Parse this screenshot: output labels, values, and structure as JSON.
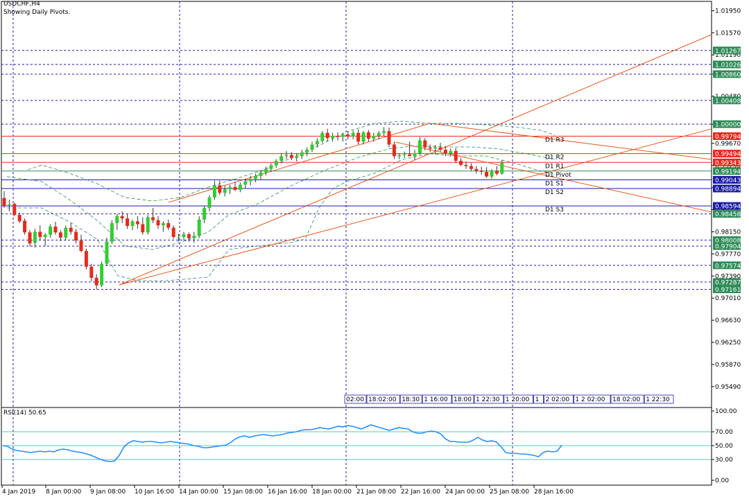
{
  "header": {
    "symbol_title": "USDCHF,H4",
    "indicator_note": "Showing Daily Pivots."
  },
  "rsi": {
    "label": "RSI(14) 50.65",
    "value": 50.65,
    "levels": [
      70,
      50,
      30
    ],
    "axis_ticks": [
      "100.00",
      "70.00",
      "50.00",
      "30.00",
      "0.00"
    ],
    "series_color": "#1e90ff",
    "values": [
      50,
      49,
      45,
      43,
      42,
      41,
      40,
      41,
      42,
      41,
      42,
      41,
      44,
      45,
      44,
      42,
      41,
      40,
      38,
      36,
      33,
      30,
      28,
      27,
      28,
      36,
      48,
      54,
      57,
      56,
      55,
      56,
      56,
      55,
      54,
      55,
      56,
      55,
      54,
      53,
      52,
      50,
      49,
      47,
      47,
      48,
      49,
      50,
      51,
      55,
      60,
      63,
      64,
      62,
      64,
      65,
      66,
      65,
      64,
      65,
      66,
      68,
      69,
      70,
      72,
      73,
      73,
      74,
      76,
      75,
      74,
      76,
      78,
      77,
      79,
      78,
      76,
      74,
      77,
      80,
      78,
      76,
      74,
      72,
      74,
      76,
      75,
      74,
      70,
      68,
      68,
      70,
      71,
      70,
      67,
      60,
      56,
      56,
      55,
      55,
      55,
      58,
      62,
      58,
      56,
      57,
      55,
      48,
      40,
      39,
      39,
      38,
      38,
      37,
      36,
      34,
      40,
      42,
      41,
      42,
      50.65
    ]
  },
  "price_axis": {
    "ticks": [
      "1.01950",
      "1.01570",
      "1.01190",
      "1.00860",
      "1.00480",
      "1.00000",
      "0.99670",
      "0.99290",
      "0.98910",
      "0.98530",
      "0.98150",
      "0.97770",
      "0.97390",
      "0.97010",
      "0.96630",
      "0.96250",
      "0.95870",
      "0.95490"
    ],
    "level_labels": [
      {
        "text": "1.01267",
        "price": 1.01267,
        "bg": "#2e8b57",
        "fg": "#ffffff"
      },
      {
        "text": "1.01026",
        "price": 1.01026,
        "bg": "#2e8b57",
        "fg": "#ffffff"
      },
      {
        "text": "1.00860",
        "price": 1.0086,
        "bg": "#2e8b57",
        "fg": "#ffffff"
      },
      {
        "text": "1.00408",
        "price": 1.00408,
        "bg": "#2e8b57",
        "fg": "#ffffff"
      },
      {
        "text": "1.00000",
        "price": 1.0,
        "bg": "#2e8b57",
        "fg": "#ffffff"
      },
      {
        "text": "0.99794",
        "price": 0.99794,
        "bg": "#e8291c",
        "fg": "#ffffff"
      },
      {
        "text": "0.99494",
        "price": 0.99494,
        "bg": "#e8291c",
        "fg": "#ffffff"
      },
      {
        "text": "0.99343",
        "price": 0.99343,
        "bg": "#e8291c",
        "fg": "#ffffff"
      },
      {
        "text": "0.99194",
        "price": 0.99194,
        "bg": "#2e8b57",
        "fg": "#ffffff"
      },
      {
        "text": "0.99043",
        "price": 0.99043,
        "bg": "#1a1aa6",
        "fg": "#ffffff"
      },
      {
        "text": "0.98894",
        "price": 0.98894,
        "bg": "#1a1aa6",
        "fg": "#ffffff"
      },
      {
        "text": "0.98594",
        "price": 0.98594,
        "bg": "#1a1aa6",
        "fg": "#ffffff"
      },
      {
        "text": "0.98458",
        "price": 0.98458,
        "bg": "#2e8b57",
        "fg": "#ffffff"
      },
      {
        "text": "0.98008",
        "price": 0.98008,
        "bg": "#2e8b57",
        "fg": "#ffffff"
      },
      {
        "text": "0.97904",
        "price": 0.97904,
        "bg": "#2e8b57",
        "fg": "#ffffff"
      },
      {
        "text": "0.97574",
        "price": 0.97574,
        "bg": "#2e8b57",
        "fg": "#ffffff"
      },
      {
        "text": "0.97287",
        "price": 0.97287,
        "bg": "#2e8b57",
        "fg": "#ffffff"
      },
      {
        "text": "0.97161",
        "price": 0.97161,
        "bg": "#2e8b57",
        "fg": "#ffffff"
      }
    ]
  },
  "time_axis": {
    "labels": [
      "4 Jan 2019",
      "8 Jan 00:00",
      "9 Jan 08:00",
      "10 Jan 16:00",
      "14 Jan 00:00",
      "15 Jan 08:00",
      "16 Jan 16:00",
      "18 Jan 00:00",
      "21 Jan 08:00",
      "22 Jan 16:00",
      "24 Jan 00:00",
      "25 Jan 08:00",
      "28 Jan 16:00"
    ]
  },
  "pivots": [
    {
      "name": "D1 R3",
      "price": 0.99794,
      "color": "#e8291c"
    },
    {
      "name": "D1 R2",
      "price": 0.99494,
      "color": "#e8291c"
    },
    {
      "name": "D1 R1",
      "price": 0.99343,
      "color": "#e8291c"
    },
    {
      "name": "D1 Pivot",
      "price": 0.99194,
      "color": "#2e8b57"
    },
    {
      "name": "D1 S1",
      "price": 0.99043,
      "color": "#1a1aa6"
    },
    {
      "name": "D1 S2",
      "price": 0.98894,
      "color": "#1a1aa6"
    },
    {
      "name": "D1 S3",
      "price": 0.98594,
      "color": "#1a1aa6"
    }
  ],
  "session_boxes": [
    "02:00",
    "18:02:00",
    "18:30",
    "1 16:00",
    "18:00",
    "1 22:30",
    "1 20:00",
    "1",
    "2 02:00",
    "1 2 02:00",
    "18 02:00",
    "1 22:30"
  ],
  "colors": {
    "bull": "#32cd32",
    "bear": "#e8291c",
    "grid": "#1a1aa6",
    "trend": "#e8571c",
    "bands": "#2e8b57"
  },
  "chart_data": {
    "type": "candlestick",
    "symbol": "USDCHF",
    "timeframe": "H4",
    "ylim": [
      0.9513,
      1.0211
    ],
    "candles": [
      [
        0.9873,
        0.9885,
        0.9856,
        0.986
      ],
      [
        0.9862,
        0.987,
        0.985,
        0.9862
      ],
      [
        0.9863,
        0.9865,
        0.9842,
        0.9844
      ],
      [
        0.9844,
        0.9848,
        0.983,
        0.9833
      ],
      [
        0.9834,
        0.9838,
        0.981,
        0.9814
      ],
      [
        0.9814,
        0.9818,
        0.979,
        0.9795
      ],
      [
        0.9796,
        0.982,
        0.9788,
        0.9815
      ],
      [
        0.9815,
        0.9826,
        0.98,
        0.9806
      ],
      [
        0.9806,
        0.9813,
        0.979,
        0.981
      ],
      [
        0.981,
        0.9828,
        0.9805,
        0.9824
      ],
      [
        0.9824,
        0.9832,
        0.981,
        0.9814
      ],
      [
        0.9814,
        0.9818,
        0.9799,
        0.9805
      ],
      [
        0.9805,
        0.9826,
        0.98,
        0.9822
      ],
      [
        0.9822,
        0.983,
        0.981,
        0.9815
      ],
      [
        0.9815,
        0.982,
        0.9795,
        0.98
      ],
      [
        0.98,
        0.981,
        0.978,
        0.9782
      ],
      [
        0.9782,
        0.9786,
        0.975,
        0.9755
      ],
      [
        0.9755,
        0.976,
        0.973,
        0.9736
      ],
      [
        0.9736,
        0.9742,
        0.9716,
        0.9723
      ],
      [
        0.9723,
        0.9764,
        0.972,
        0.976
      ],
      [
        0.976,
        0.9805,
        0.9756,
        0.9798
      ],
      [
        0.9798,
        0.9835,
        0.9794,
        0.983
      ],
      [
        0.983,
        0.9846,
        0.9818,
        0.9842
      ],
      [
        0.9842,
        0.985,
        0.983,
        0.9838
      ],
      [
        0.9838,
        0.9845,
        0.982,
        0.9825
      ],
      [
        0.9825,
        0.9836,
        0.9818,
        0.9833
      ],
      [
        0.9833,
        0.9842,
        0.982,
        0.9828
      ],
      [
        0.9828,
        0.984,
        0.981,
        0.9814
      ],
      [
        0.9814,
        0.9844,
        0.981,
        0.984
      ],
      [
        0.984,
        0.9856,
        0.983,
        0.9835
      ],
      [
        0.9835,
        0.9842,
        0.982,
        0.9826
      ],
      [
        0.9826,
        0.9833,
        0.9815,
        0.983
      ],
      [
        0.983,
        0.9836,
        0.9818,
        0.9822
      ],
      [
        0.9822,
        0.9826,
        0.9803,
        0.9806
      ],
      [
        0.9806,
        0.9812,
        0.9798,
        0.9806
      ],
      [
        0.9806,
        0.9815,
        0.98,
        0.9811
      ],
      [
        0.9811,
        0.9814,
        0.9798,
        0.9804
      ],
      [
        0.9804,
        0.9815,
        0.9796,
        0.9808
      ],
      [
        0.9808,
        0.9842,
        0.9804,
        0.9836
      ],
      [
        0.9836,
        0.986,
        0.983,
        0.9856
      ],
      [
        0.9856,
        0.9878,
        0.985,
        0.9874
      ],
      [
        0.9874,
        0.9903,
        0.987,
        0.9895
      ],
      [
        0.9895,
        0.9903,
        0.9878,
        0.9882
      ],
      [
        0.9882,
        0.9894,
        0.9876,
        0.9888
      ],
      [
        0.9888,
        0.9896,
        0.988,
        0.9892
      ],
      [
        0.9892,
        0.9901,
        0.9885,
        0.9887
      ],
      [
        0.9887,
        0.99,
        0.9883,
        0.9896
      ],
      [
        0.9896,
        0.9906,
        0.989,
        0.9902
      ],
      [
        0.9902,
        0.9911,
        0.9895,
        0.9906
      ],
      [
        0.9906,
        0.9915,
        0.99,
        0.9911
      ],
      [
        0.9911,
        0.9921,
        0.9905,
        0.9917
      ],
      [
        0.9917,
        0.9927,
        0.9912,
        0.9923
      ],
      [
        0.9923,
        0.9933,
        0.9918,
        0.9929
      ],
      [
        0.9929,
        0.994,
        0.9925,
        0.9937
      ],
      [
        0.9937,
        0.995,
        0.9933,
        0.9945
      ],
      [
        0.9945,
        0.9954,
        0.994,
        0.9947
      ],
      [
        0.9947,
        0.9952,
        0.9938,
        0.9942
      ],
      [
        0.9942,
        0.995,
        0.9936,
        0.9945
      ],
      [
        0.9945,
        0.9956,
        0.994,
        0.9951
      ],
      [
        0.9951,
        0.996,
        0.9945,
        0.9956
      ],
      [
        0.9956,
        0.997,
        0.9952,
        0.9965
      ],
      [
        0.9965,
        0.9976,
        0.996,
        0.9971
      ],
      [
        0.9971,
        0.9988,
        0.9968,
        0.9985
      ],
      [
        0.9985,
        0.9992,
        0.997,
        0.9976
      ],
      [
        0.9976,
        0.9985,
        0.997,
        0.998
      ],
      [
        0.998,
        0.9986,
        0.9972,
        0.9978
      ],
      [
        0.9978,
        0.9985,
        0.997,
        0.9982
      ],
      [
        0.9982,
        0.9988,
        0.9974,
        0.9979
      ],
      [
        0.9979,
        0.9989,
        0.9974,
        0.9985
      ],
      [
        0.9985,
        0.9991,
        0.9965,
        0.997
      ],
      [
        0.997,
        0.9988,
        0.9965,
        0.9986
      ],
      [
        0.9986,
        0.999,
        0.997,
        0.9975
      ],
      [
        0.9975,
        0.9985,
        0.997,
        0.998
      ],
      [
        0.998,
        0.9988,
        0.9974,
        0.9985
      ],
      [
        0.9985,
        0.9995,
        0.998,
        0.9988
      ],
      [
        0.9988,
        0.9994,
        0.996,
        0.9965
      ],
      [
        0.9965,
        0.997,
        0.994,
        0.9945
      ],
      [
        0.9945,
        0.995,
        0.994,
        0.9947
      ],
      [
        0.9947,
        0.9953,
        0.9942,
        0.9948
      ],
      [
        0.9948,
        0.997,
        0.9945,
        0.9945
      ],
      [
        0.9945,
        0.9956,
        0.9938,
        0.995
      ],
      [
        0.995,
        0.9978,
        0.9947,
        0.9972
      ],
      [
        0.9972,
        0.9976,
        0.9955,
        0.996
      ],
      [
        0.996,
        0.9965,
        0.9952,
        0.9958
      ],
      [
        0.9958,
        0.9964,
        0.995,
        0.996
      ],
      [
        0.996,
        0.9968,
        0.9953,
        0.9956
      ],
      [
        0.9956,
        0.9962,
        0.9945,
        0.995
      ],
      [
        0.995,
        0.9958,
        0.9944,
        0.9954
      ],
      [
        0.9954,
        0.9959,
        0.9933,
        0.9937
      ],
      [
        0.9937,
        0.9942,
        0.9928,
        0.993
      ],
      [
        0.993,
        0.9936,
        0.9923,
        0.9928
      ],
      [
        0.9928,
        0.9933,
        0.992,
        0.9923
      ],
      [
        0.9923,
        0.9928,
        0.9915,
        0.992
      ],
      [
        0.992,
        0.9927,
        0.9913,
        0.9918
      ],
      [
        0.9918,
        0.9926,
        0.9908,
        0.991
      ],
      [
        0.991,
        0.9923,
        0.9906,
        0.992
      ],
      [
        0.992,
        0.9928,
        0.9912,
        0.9915
      ],
      [
        0.9915,
        0.9938,
        0.9913,
        0.9934
      ]
    ],
    "pivot_levels": {
      "R3": 0.99794,
      "R2": 0.99494,
      "R1": 0.99343,
      "Pivot": 0.99194,
      "S1": 0.99043,
      "S2": 0.98894,
      "S3": 0.98594
    },
    "rsi_last": 50.65
  }
}
